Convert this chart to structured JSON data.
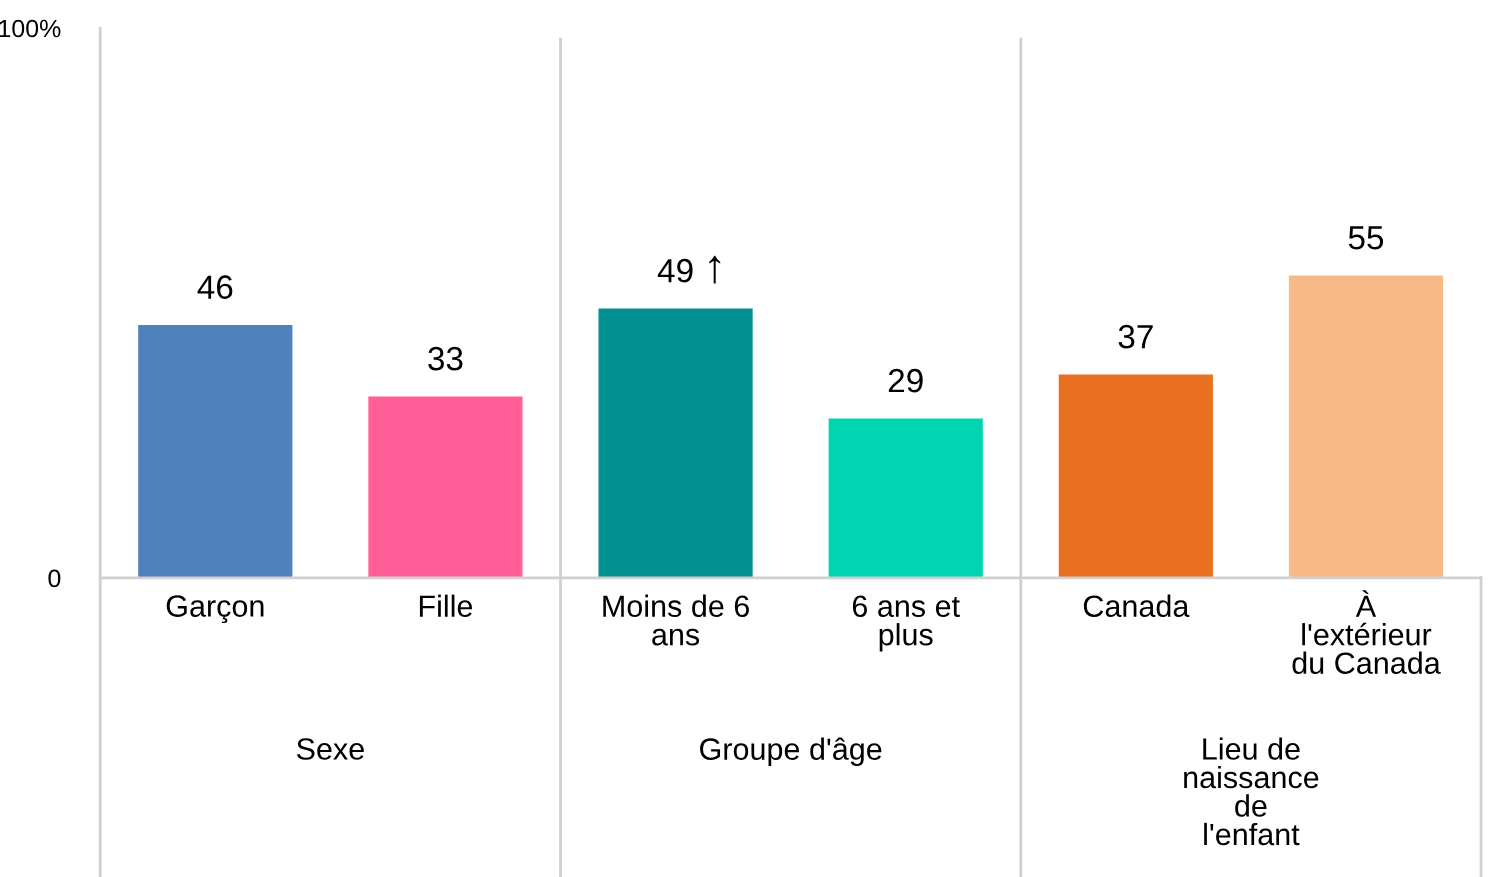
{
  "chart_data": {
    "type": "bar",
    "categories": [
      "Garçon",
      "Fille",
      "Moins de 6 ans",
      "6 ans et plus",
      "Canada",
      "À l'extérieur du Canada"
    ],
    "values": [
      46,
      33,
      49,
      29,
      37,
      55
    ],
    "colors": [
      "#4f81bd",
      "#ff5f96",
      "#009090",
      "#00d4b0",
      "#e87020",
      "#f7b986"
    ],
    "ylim": [
      0,
      100
    ],
    "yticks": [
      0,
      {
        "value": 100,
        "label": "100%"
      }
    ],
    "data_labels": true,
    "grid": false,
    "legend": false,
    "annotations": [
      "Sexe",
      "Groupe d'âge",
      "Lieu de naissance de l'enfant",
      {
        "text": "↑",
        "x": "Moins de 6 ans",
        "y": 49
      }
    ]
  }
}
